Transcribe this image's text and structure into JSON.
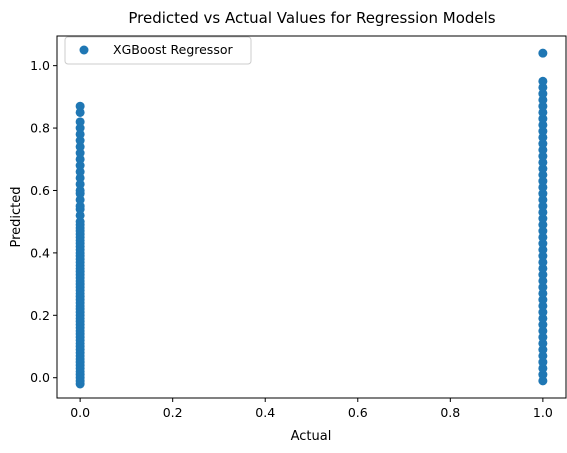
{
  "chart_data": {
    "type": "scatter",
    "title": "Predicted vs Actual Values for Regression Models",
    "xlabel": "Actual",
    "ylabel": "Predicted",
    "xlim": [
      -0.05,
      1.05
    ],
    "ylim": [
      -0.065,
      1.095
    ],
    "xticks": [
      0.0,
      0.2,
      0.4,
      0.6,
      0.8,
      1.0
    ],
    "xtick_labels": [
      "0.0",
      "0.2",
      "0.4",
      "0.6",
      "0.8",
      "1.0"
    ],
    "yticks": [
      0.0,
      0.2,
      0.4,
      0.6,
      0.8,
      1.0
    ],
    "ytick_labels": [
      "0.0",
      "0.2",
      "0.4",
      "0.6",
      "0.8",
      "1.0"
    ],
    "grid": false,
    "legend_position": "upper-left",
    "colors": {
      "series": "#1f77b4"
    },
    "series": [
      {
        "name": "XGBoost Regressor",
        "points": [
          [
            0,
            -0.02
          ],
          [
            0,
            -0.01
          ],
          [
            0,
            0.0
          ],
          [
            0,
            0.01
          ],
          [
            0,
            0.02
          ],
          [
            0,
            0.03
          ],
          [
            0,
            0.04
          ],
          [
            0,
            0.05
          ],
          [
            0,
            0.06
          ],
          [
            0,
            0.07
          ],
          [
            0,
            0.08
          ],
          [
            0,
            0.09
          ],
          [
            0,
            0.1
          ],
          [
            0,
            0.11
          ],
          [
            0,
            0.12
          ],
          [
            0,
            0.13
          ],
          [
            0,
            0.14
          ],
          [
            0,
            0.15
          ],
          [
            0,
            0.16
          ],
          [
            0,
            0.17
          ],
          [
            0,
            0.18
          ],
          [
            0,
            0.19
          ],
          [
            0,
            0.2
          ],
          [
            0,
            0.21
          ],
          [
            0,
            0.22
          ],
          [
            0,
            0.23
          ],
          [
            0,
            0.24
          ],
          [
            0,
            0.25
          ],
          [
            0,
            0.26
          ],
          [
            0,
            0.27
          ],
          [
            0,
            0.28
          ],
          [
            0,
            0.29
          ],
          [
            0,
            0.3
          ],
          [
            0,
            0.31
          ],
          [
            0,
            0.32
          ],
          [
            0,
            0.33
          ],
          [
            0,
            0.34
          ],
          [
            0,
            0.35
          ],
          [
            0,
            0.36
          ],
          [
            0,
            0.37
          ],
          [
            0,
            0.38
          ],
          [
            0,
            0.39
          ],
          [
            0,
            0.4
          ],
          [
            0,
            0.41
          ],
          [
            0,
            0.42
          ],
          [
            0,
            0.43
          ],
          [
            0,
            0.44
          ],
          [
            0,
            0.45
          ],
          [
            0,
            0.46
          ],
          [
            0,
            0.47
          ],
          [
            0,
            0.48
          ],
          [
            0,
            0.49
          ],
          [
            0,
            0.5
          ],
          [
            0,
            0.52
          ],
          [
            0,
            0.54
          ],
          [
            0,
            0.55
          ],
          [
            0,
            0.57
          ],
          [
            0,
            0.59
          ],
          [
            0,
            0.6
          ],
          [
            0,
            0.62
          ],
          [
            0,
            0.64
          ],
          [
            0,
            0.66
          ],
          [
            0,
            0.68
          ],
          [
            0,
            0.7
          ],
          [
            0,
            0.72
          ],
          [
            0,
            0.74
          ],
          [
            0,
            0.76
          ],
          [
            0,
            0.78
          ],
          [
            0,
            0.8
          ],
          [
            0,
            0.82
          ],
          [
            0,
            0.85
          ],
          [
            0,
            0.87
          ],
          [
            1,
            -0.01
          ],
          [
            1,
            0.01
          ],
          [
            1,
            0.03
          ],
          [
            1,
            0.05
          ],
          [
            1,
            0.07
          ],
          [
            1,
            0.09
          ],
          [
            1,
            0.11
          ],
          [
            1,
            0.13
          ],
          [
            1,
            0.15
          ],
          [
            1,
            0.17
          ],
          [
            1,
            0.19
          ],
          [
            1,
            0.21
          ],
          [
            1,
            0.23
          ],
          [
            1,
            0.25
          ],
          [
            1,
            0.27
          ],
          [
            1,
            0.29
          ],
          [
            1,
            0.31
          ],
          [
            1,
            0.33
          ],
          [
            1,
            0.35
          ],
          [
            1,
            0.37
          ],
          [
            1,
            0.39
          ],
          [
            1,
            0.41
          ],
          [
            1,
            0.43
          ],
          [
            1,
            0.45
          ],
          [
            1,
            0.47
          ],
          [
            1,
            0.49
          ],
          [
            1,
            0.51
          ],
          [
            1,
            0.53
          ],
          [
            1,
            0.55
          ],
          [
            1,
            0.57
          ],
          [
            1,
            0.59
          ],
          [
            1,
            0.61
          ],
          [
            1,
            0.63
          ],
          [
            1,
            0.65
          ],
          [
            1,
            0.67
          ],
          [
            1,
            0.69
          ],
          [
            1,
            0.71
          ],
          [
            1,
            0.73
          ],
          [
            1,
            0.75
          ],
          [
            1,
            0.77
          ],
          [
            1,
            0.79
          ],
          [
            1,
            0.81
          ],
          [
            1,
            0.83
          ],
          [
            1,
            0.85
          ],
          [
            1,
            0.87
          ],
          [
            1,
            0.89
          ],
          [
            1,
            0.91
          ],
          [
            1,
            0.93
          ],
          [
            1,
            0.95
          ],
          [
            1,
            1.04
          ]
        ]
      }
    ]
  }
}
